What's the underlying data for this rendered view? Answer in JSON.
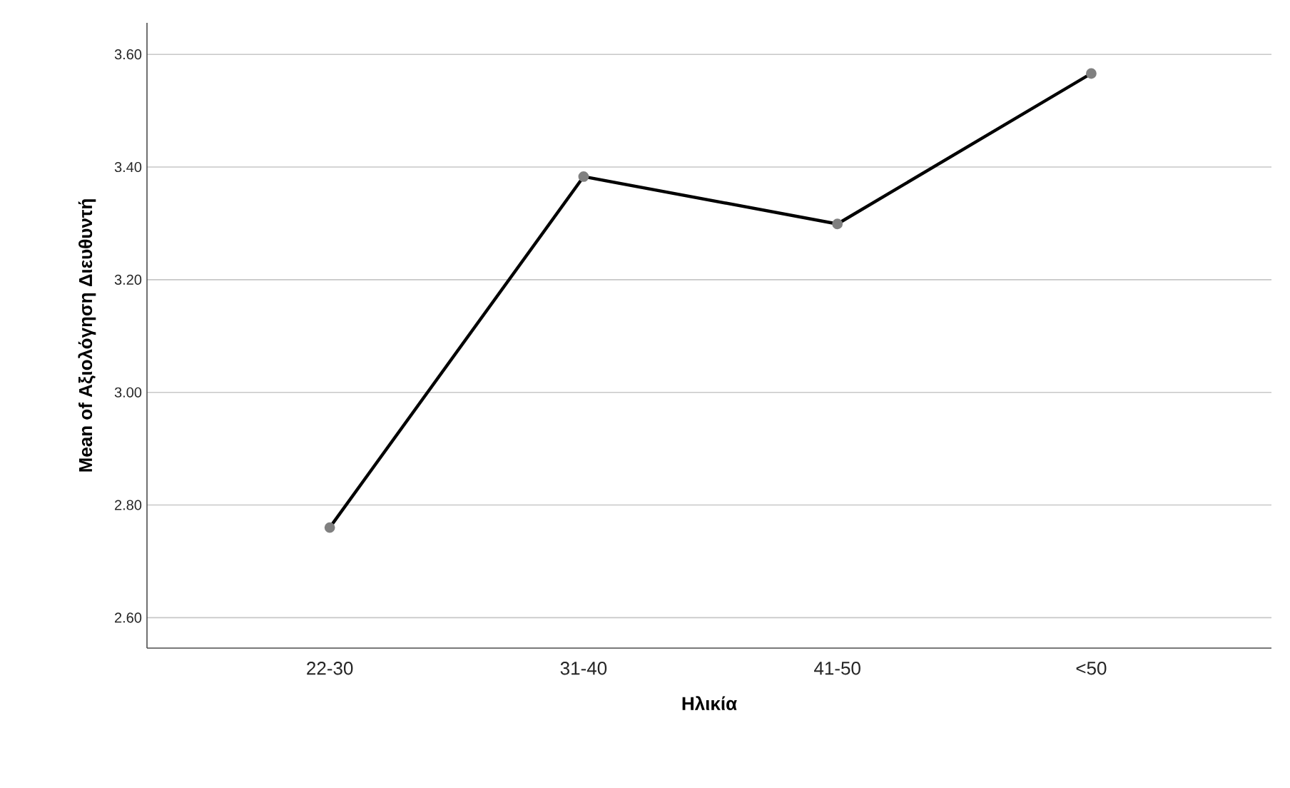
{
  "chart_data": {
    "type": "line",
    "xlabel": "Ηλικία",
    "ylabel": "Mean of Αξιολόγηση Διευθυντή",
    "categories": [
      "22-30",
      "31-40",
      "41-50",
      "<50"
    ],
    "series": [
      {
        "color": "#000000",
        "values": [
          2.76,
          3.383,
          3.299,
          3.566
        ]
      }
    ],
    "marker": "circle",
    "line_style": "solid",
    "grid": "y",
    "ylim": [
      2.546,
      3.656
    ],
    "yticks": [
      {
        "value": 2.6,
        "label": "2.60"
      },
      {
        "value": 2.8,
        "label": "2.80"
      },
      {
        "value": 3.0,
        "label": "3.00"
      },
      {
        "value": 3.2,
        "label": "3.20"
      },
      {
        "value": 3.4,
        "label": "3.40"
      },
      {
        "value": 3.6,
        "label": "3.60"
      }
    ]
  }
}
